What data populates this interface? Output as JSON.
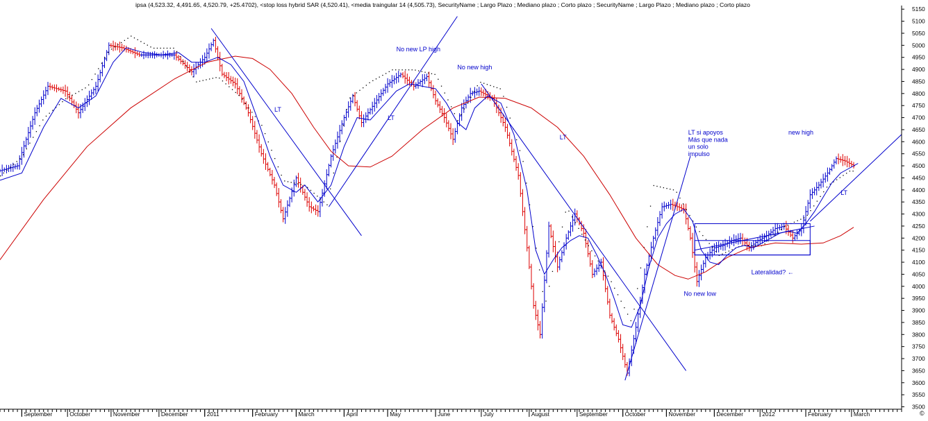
{
  "header": {
    "text": "ipsa (4,523.32, 4,491.65, 4,520.79, +25.4702), <stop loss hybrid SAR (4,520.41), <media traingular 14 (4,505.73),  SecurityName ; Largo Plazo ; Mediano plazo ; Corto plazo ; SecurityName ; Largo Plazo ; Mediano plazo ; Corto plazo"
  },
  "copyright_mark": "©",
  "chart_data": {
    "type": "line",
    "title": "",
    "xlabel": "",
    "ylabel": "",
    "ylim": [
      3490,
      5165
    ],
    "y_ticks": [
      3500,
      3550,
      3600,
      3650,
      3700,
      3750,
      3800,
      3850,
      3900,
      3950,
      4000,
      4050,
      4100,
      4150,
      4200,
      4250,
      4300,
      4350,
      4400,
      4450,
      4500,
      4550,
      4600,
      4650,
      4700,
      4750,
      4800,
      4850,
      4900,
      4950,
      5000,
      5050,
      5100,
      5150
    ],
    "x_range": [
      0,
      414
    ],
    "x_ticks": [
      {
        "label": "September",
        "x": 10
      },
      {
        "label": "October",
        "x": 31
      },
      {
        "label": "November",
        "x": 51
      },
      {
        "label": "December",
        "x": 73
      },
      {
        "label": "2011",
        "x": 94
      },
      {
        "label": "February",
        "x": 116
      },
      {
        "label": "March",
        "x": 136
      },
      {
        "label": "April",
        "x": 158
      },
      {
        "label": "May",
        "x": 178
      },
      {
        "label": "June",
        "x": 200
      },
      {
        "label": "July",
        "x": 221
      },
      {
        "label": "August",
        "x": 243
      },
      {
        "label": "September",
        "x": 265
      },
      {
        "label": "October",
        "x": 286
      },
      {
        "label": "November",
        "x": 306
      },
      {
        "label": "December",
        "x": 328
      },
      {
        "label": "2012",
        "x": 349
      },
      {
        "label": "February",
        "x": 370
      },
      {
        "label": "March",
        "x": 391
      }
    ],
    "series": [
      {
        "key": "price",
        "color": "#0000cc",
        "down_color": "#dd0000",
        "points": [
          [
            0,
            4480
          ],
          [
            8,
            4500
          ],
          [
            16,
            4720
          ],
          [
            22,
            4830
          ],
          [
            30,
            4810
          ],
          [
            36,
            4720
          ],
          [
            44,
            4830
          ],
          [
            50,
            5000
          ],
          [
            56,
            4990
          ],
          [
            64,
            4960
          ],
          [
            72,
            4960
          ],
          [
            80,
            4960
          ],
          [
            88,
            4890
          ],
          [
            94,
            4950
          ],
          [
            98,
            5020
          ],
          [
            102,
            4880
          ],
          [
            108,
            4840
          ],
          [
            114,
            4720
          ],
          [
            120,
            4550
          ],
          [
            126,
            4420
          ],
          [
            130,
            4280
          ],
          [
            136,
            4450
          ],
          [
            142,
            4330
          ],
          [
            146,
            4310
          ],
          [
            152,
            4540
          ],
          [
            158,
            4700
          ],
          [
            162,
            4790
          ],
          [
            166,
            4680
          ],
          [
            172,
            4760
          ],
          [
            178,
            4840
          ],
          [
            184,
            4880
          ],
          [
            190,
            4830
          ],
          [
            196,
            4870
          ],
          [
            200,
            4770
          ],
          [
            204,
            4700
          ],
          [
            208,
            4610
          ],
          [
            212,
            4740
          ],
          [
            216,
            4800
          ],
          [
            220,
            4810
          ],
          [
            226,
            4780
          ],
          [
            232,
            4660
          ],
          [
            238,
            4460
          ],
          [
            242,
            4160
          ],
          [
            245,
            3920
          ],
          [
            248,
            3800
          ],
          [
            252,
            4250
          ],
          [
            256,
            4080
          ],
          [
            260,
            4200
          ],
          [
            264,
            4300
          ],
          [
            268,
            4220
          ],
          [
            272,
            4050
          ],
          [
            276,
            4100
          ],
          [
            280,
            3880
          ],
          [
            284,
            3780
          ],
          [
            288,
            3640
          ],
          [
            292,
            3830
          ],
          [
            296,
            4050
          ],
          [
            300,
            4200
          ],
          [
            304,
            4330
          ],
          [
            308,
            4340
          ],
          [
            314,
            4320
          ],
          [
            317,
            4200
          ],
          [
            320,
            4020
          ],
          [
            324,
            4120
          ],
          [
            328,
            4160
          ],
          [
            332,
            4170
          ],
          [
            336,
            4190
          ],
          [
            340,
            4200
          ],
          [
            344,
            4160
          ],
          [
            348,
            4190
          ],
          [
            352,
            4210
          ],
          [
            356,
            4240
          ],
          [
            360,
            4250
          ],
          [
            364,
            4200
          ],
          [
            368,
            4240
          ],
          [
            372,
            4380
          ],
          [
            376,
            4420
          ],
          [
            380,
            4470
          ],
          [
            384,
            4530
          ],
          [
            388,
            4520
          ],
          [
            392,
            4500
          ]
        ]
      },
      {
        "key": "sar",
        "color": "#000000",
        "points": [
          [
            0,
            4460
          ],
          [
            10,
            4540
          ],
          [
            20,
            4700
          ],
          [
            30,
            4780
          ],
          [
            40,
            4830
          ],
          [
            50,
            4980
          ],
          [
            60,
            5040
          ],
          [
            70,
            4990
          ],
          [
            80,
            4990
          ],
          [
            90,
            4850
          ],
          [
            100,
            4870
          ],
          [
            110,
            4790
          ],
          [
            120,
            4670
          ],
          [
            130,
            4440
          ],
          [
            140,
            4420
          ],
          [
            150,
            4340
          ],
          [
            160,
            4780
          ],
          [
            170,
            4850
          ],
          [
            180,
            4900
          ],
          [
            190,
            4900
          ],
          [
            200,
            4880
          ],
          [
            210,
            4690
          ],
          [
            220,
            4850
          ],
          [
            230,
            4820
          ],
          [
            240,
            4520
          ],
          [
            250,
            3920
          ],
          [
            260,
            4330
          ],
          [
            270,
            4170
          ],
          [
            280,
            4030
          ],
          [
            290,
            3850
          ],
          [
            300,
            4420
          ],
          [
            310,
            4400
          ],
          [
            320,
            4240
          ],
          [
            330,
            4130
          ],
          [
            340,
            4170
          ],
          [
            350,
            4170
          ],
          [
            360,
            4250
          ],
          [
            370,
            4290
          ],
          [
            380,
            4420
          ],
          [
            390,
            4480
          ]
        ]
      },
      {
        "key": "triangular_ma",
        "color": "#0000cc",
        "points": [
          [
            0,
            4440
          ],
          [
            10,
            4470
          ],
          [
            20,
            4660
          ],
          [
            28,
            4780
          ],
          [
            36,
            4740
          ],
          [
            44,
            4790
          ],
          [
            52,
            4930
          ],
          [
            58,
            4990
          ],
          [
            66,
            4970
          ],
          [
            74,
            4960
          ],
          [
            82,
            4970
          ],
          [
            88,
            4930
          ],
          [
            94,
            4930
          ],
          [
            100,
            4950
          ],
          [
            106,
            4920
          ],
          [
            112,
            4850
          ],
          [
            118,
            4700
          ],
          [
            124,
            4540
          ],
          [
            130,
            4420
          ],
          [
            136,
            4390
          ],
          [
            140,
            4420
          ],
          [
            146,
            4350
          ],
          [
            152,
            4420
          ],
          [
            158,
            4580
          ],
          [
            164,
            4700
          ],
          [
            170,
            4690
          ],
          [
            176,
            4750
          ],
          [
            182,
            4810
          ],
          [
            188,
            4840
          ],
          [
            194,
            4830
          ],
          [
            200,
            4820
          ],
          [
            205,
            4760
          ],
          [
            210,
            4680
          ],
          [
            214,
            4650
          ],
          [
            218,
            4740
          ],
          [
            224,
            4790
          ],
          [
            230,
            4760
          ],
          [
            236,
            4630
          ],
          [
            242,
            4400
          ],
          [
            246,
            4150
          ],
          [
            250,
            4050
          ],
          [
            254,
            4110
          ],
          [
            258,
            4160
          ],
          [
            262,
            4190
          ],
          [
            266,
            4210
          ],
          [
            270,
            4200
          ],
          [
            274,
            4130
          ],
          [
            278,
            4050
          ],
          [
            282,
            3950
          ],
          [
            286,
            3840
          ],
          [
            290,
            3830
          ],
          [
            294,
            3920
          ],
          [
            298,
            4080
          ],
          [
            302,
            4200
          ],
          [
            306,
            4260
          ],
          [
            310,
            4300
          ],
          [
            314,
            4320
          ],
          [
            318,
            4270
          ],
          [
            322,
            4150
          ],
          [
            326,
            4100
          ],
          [
            330,
            4090
          ],
          [
            334,
            4130
          ],
          [
            338,
            4160
          ],
          [
            342,
            4170
          ],
          [
            346,
            4160
          ],
          [
            350,
            4180
          ],
          [
            354,
            4200
          ],
          [
            358,
            4220
          ],
          [
            362,
            4230
          ],
          [
            366,
            4220
          ],
          [
            370,
            4260
          ],
          [
            374,
            4310
          ],
          [
            378,
            4370
          ],
          [
            382,
            4430
          ],
          [
            386,
            4470
          ],
          [
            390,
            4490
          ],
          [
            394,
            4510
          ]
        ]
      },
      {
        "key": "long_ma",
        "color": "#cc0000",
        "points": [
          [
            0,
            4110
          ],
          [
            20,
            4360
          ],
          [
            40,
            4580
          ],
          [
            60,
            4740
          ],
          [
            80,
            4860
          ],
          [
            95,
            4930
          ],
          [
            108,
            4955
          ],
          [
            116,
            4945
          ],
          [
            124,
            4900
          ],
          [
            134,
            4800
          ],
          [
            144,
            4660
          ],
          [
            152,
            4560
          ],
          [
            160,
            4500
          ],
          [
            170,
            4495
          ],
          [
            180,
            4540
          ],
          [
            194,
            4650
          ],
          [
            208,
            4740
          ],
          [
            220,
            4785
          ],
          [
            232,
            4780
          ],
          [
            244,
            4740
          ],
          [
            256,
            4660
          ],
          [
            268,
            4540
          ],
          [
            280,
            4380
          ],
          [
            292,
            4200
          ],
          [
            302,
            4090
          ],
          [
            310,
            4045
          ],
          [
            316,
            4030
          ],
          [
            324,
            4060
          ],
          [
            334,
            4120
          ],
          [
            344,
            4160
          ],
          [
            356,
            4180
          ],
          [
            368,
            4175
          ],
          [
            378,
            4180
          ],
          [
            386,
            4210
          ],
          [
            392,
            4245
          ]
        ]
      }
    ],
    "trendlines": [
      {
        "from": [
          97,
          5070
        ],
        "to": [
          166,
          4210
        ]
      },
      {
        "from": [
          151,
          4330
        ],
        "to": [
          210,
          5120
        ]
      },
      {
        "from": [
          221,
          4840
        ],
        "to": [
          315,
          3650
        ]
      },
      {
        "from": [
          287,
          3610
        ],
        "to": [
          317,
          4540
        ]
      },
      {
        "from": [
          319,
          4150
        ],
        "to": [
          374,
          4250
        ]
      },
      {
        "from": [
          372,
          4270
        ],
        "to": [
          414,
          4630
        ]
      }
    ],
    "boxes": [
      {
        "x0": 319,
        "x1": 372,
        "y0": 4130,
        "y1": 4260
      },
      {
        "x0": 319,
        "x1": 372,
        "y0": 4130,
        "y1": 4190
      }
    ],
    "annotations": [
      {
        "text": "LT",
        "x": 126,
        "y": 4725
      },
      {
        "text": "No new LP high",
        "x": 182,
        "y": 4975
      },
      {
        "text": "No new high",
        "x": 210,
        "y": 4900
      },
      {
        "text": "LT",
        "x": 178,
        "y": 4690
      },
      {
        "text": "LT",
        "x": 257,
        "y": 4610
      },
      {
        "text": "LT si apoyos",
        "x": 316,
        "y": 4630
      },
      {
        "text": "Más que nada",
        "x": 316,
        "y": 4600
      },
      {
        "text": "un solo",
        "x": 316,
        "y": 4570
      },
      {
        "text": "impulso",
        "x": 316,
        "y": 4540
      },
      {
        "text": "new high",
        "x": 362,
        "y": 4630
      },
      {
        "text": "LT",
        "x": 386,
        "y": 4380
      },
      {
        "text": "Lateralidad? ←",
        "x": 345,
        "y": 4050
      },
      {
        "text": "No new low",
        "x": 314,
        "y": 3960
      }
    ]
  }
}
